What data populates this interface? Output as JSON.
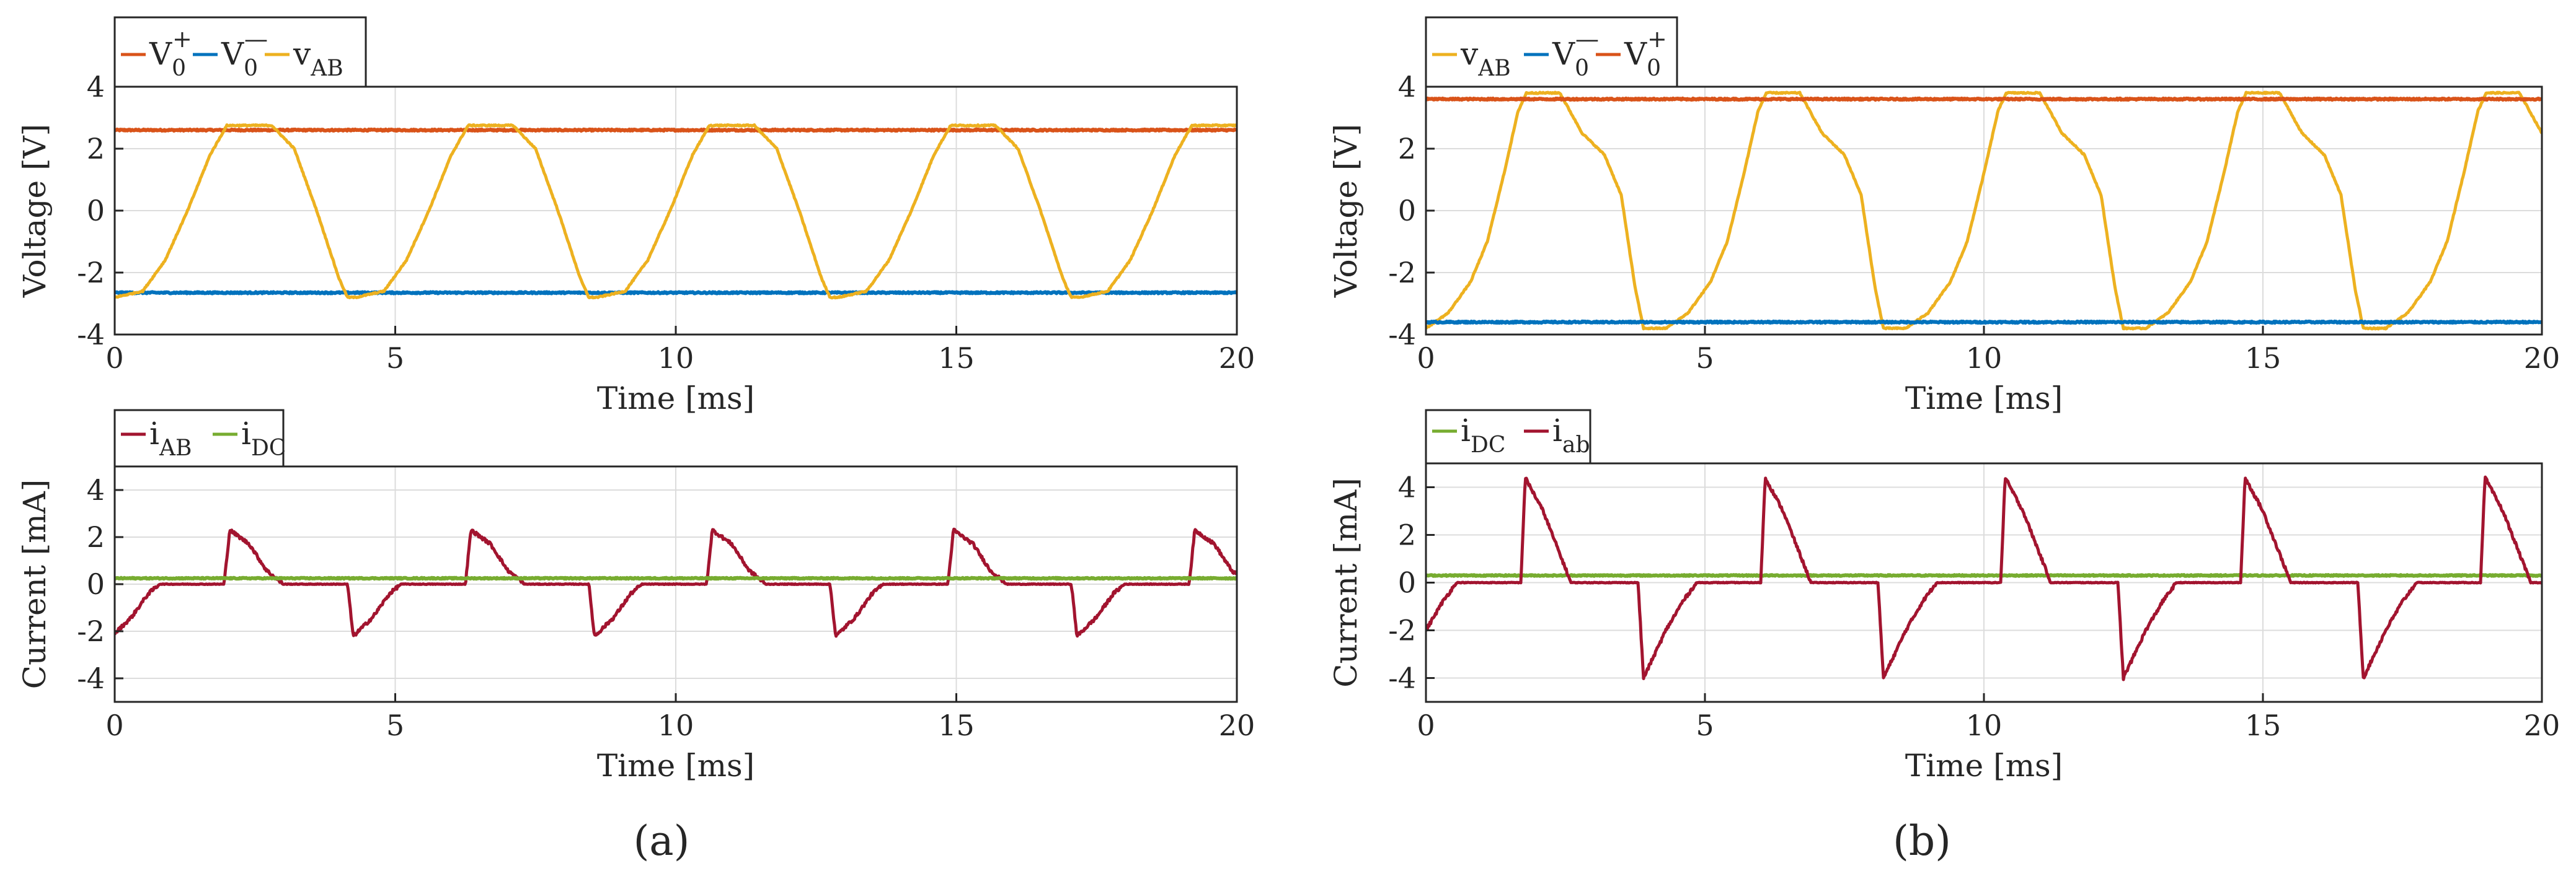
{
  "figure": {
    "panel_labels": [
      "(a)",
      "(b)"
    ]
  },
  "colors": {
    "v0p": "#D95319",
    "v0m": "#0072BD",
    "vab": "#EDB120",
    "iab": "#A2142F",
    "idc": "#77AC30",
    "axis": "#262626",
    "grid": "#dcdcdc"
  },
  "chart_data": [
    {
      "id": "a_voltage",
      "type": "line",
      "xlabel": "Time [ms]",
      "ylabel": "Voltage  [V]",
      "xlim": [
        0,
        20
      ],
      "ylim": [
        -4,
        4
      ],
      "xticks": [
        0,
        5,
        10,
        15,
        20
      ],
      "yticks": [
        -4,
        -2,
        0,
        2,
        4
      ],
      "legend": [
        {
          "key": "v0p",
          "base": "V",
          "sub": "0",
          "sup": "+"
        },
        {
          "key": "v0m",
          "base": "V",
          "sub": "0",
          "sup": "—"
        },
        {
          "key": "vab",
          "base": "v",
          "sub": "AB",
          "sup": ""
        }
      ],
      "series": [
        {
          "name": "V0+",
          "key": "v0p",
          "kind": "const",
          "value": 2.6
        },
        {
          "name": "V0-",
          "key": "v0m",
          "kind": "const",
          "value": -2.65
        },
        {
          "name": "vAB",
          "key": "vab",
          "kind": "pts",
          "period": 4.3,
          "repeat_from": 0,
          "repeat_to": 20,
          "pts": [
            [
              0,
              -2.8
            ],
            [
              0.5,
              -2.6
            ],
            [
              0.9,
              -1.6
            ],
            [
              1.3,
              0
            ],
            [
              1.7,
              1.8
            ],
            [
              2.0,
              2.75
            ],
            [
              2.8,
              2.75
            ],
            [
              3.2,
              2.0
            ],
            [
              3.6,
              0.0
            ],
            [
              4.0,
              -2.2
            ],
            [
              4.15,
              -2.8
            ],
            [
              4.3,
              -2.8
            ]
          ]
        }
      ]
    },
    {
      "id": "a_current",
      "type": "line",
      "xlabel": "Time [ms]",
      "ylabel": "Current [mA]",
      "xlim": [
        0,
        20
      ],
      "ylim": [
        -5,
        5
      ],
      "xticks": [
        0,
        5,
        10,
        15,
        20
      ],
      "yticks": [
        -4,
        -2,
        0,
        2,
        4
      ],
      "legend": [
        {
          "key": "iab",
          "base": "i",
          "sub": "AB",
          "sup": ""
        },
        {
          "key": "idc",
          "base": "i",
          "sub": "DC",
          "sup": ""
        }
      ],
      "series": [
        {
          "name": "iAB",
          "key": "iab",
          "kind": "pts",
          "period": 4.3,
          "repeat_from": 0,
          "repeat_to": 20,
          "pts": [
            [
              0,
              -2.1
            ],
            [
              0.3,
              -1.4
            ],
            [
              0.6,
              -0.4
            ],
            [
              0.8,
              0
            ],
            [
              1.95,
              0
            ],
            [
              2.05,
              2.3
            ],
            [
              2.4,
              1.7
            ],
            [
              2.7,
              0.6
            ],
            [
              3.0,
              0
            ],
            [
              4.15,
              0
            ],
            [
              4.25,
              -2.2
            ],
            [
              4.3,
              -2.1
            ]
          ]
        },
        {
          "name": "iDC",
          "key": "idc",
          "kind": "const",
          "value": 0.25
        }
      ]
    },
    {
      "id": "b_voltage",
      "type": "line",
      "xlabel": "Time [ms]",
      "ylabel": "Voltage  [V]",
      "xlim": [
        0,
        20
      ],
      "ylim": [
        -4,
        4
      ],
      "xticks": [
        0,
        5,
        10,
        15,
        20
      ],
      "yticks": [
        -4,
        -2,
        0,
        2,
        4
      ],
      "legend": [
        {
          "key": "vab",
          "base": "v",
          "sub": "AB",
          "sup": ""
        },
        {
          "key": "v0m",
          "base": "V",
          "sub": "0",
          "sup": "—"
        },
        {
          "key": "v0p",
          "base": "V",
          "sub": "0",
          "sup": "+"
        }
      ],
      "series": [
        {
          "name": "vAB",
          "key": "vab",
          "kind": "pts",
          "period": 4.3,
          "repeat_from": 0,
          "repeat_to": 20,
          "pts": [
            [
              0,
              -3.8
            ],
            [
              0.4,
              -3.3
            ],
            [
              0.8,
              -2.3
            ],
            [
              1.1,
              -1.0
            ],
            [
              1.4,
              1.2
            ],
            [
              1.65,
              3.2
            ],
            [
              1.8,
              3.8
            ],
            [
              2.4,
              3.8
            ],
            [
              2.8,
              2.5
            ],
            [
              3.2,
              1.8
            ],
            [
              3.5,
              0.5
            ],
            [
              3.75,
              -2.5
            ],
            [
              3.9,
              -3.8
            ],
            [
              4.3,
              -3.8
            ]
          ]
        },
        {
          "name": "V0-",
          "key": "v0m",
          "kind": "const",
          "value": -3.6
        },
        {
          "name": "V0+",
          "key": "v0p",
          "kind": "const",
          "value": 3.6
        }
      ]
    },
    {
      "id": "b_current",
      "type": "line",
      "xlabel": "Time [ms]",
      "ylabel": "Current [mA]",
      "xlim": [
        0,
        20
      ],
      "ylim": [
        -5,
        5
      ],
      "xticks": [
        0,
        5,
        10,
        15,
        20
      ],
      "yticks": [
        -4,
        -2,
        0,
        2,
        4
      ],
      "legend": [
        {
          "key": "idc",
          "base": "i",
          "sub": "DC",
          "sup": ""
        },
        {
          "key": "iab",
          "base": "i",
          "sub": "ab",
          "sup": ""
        }
      ],
      "series": [
        {
          "name": "iDC",
          "key": "idc",
          "kind": "const",
          "value": 0.3
        },
        {
          "name": "iab",
          "key": "iab",
          "kind": "pts",
          "period": 4.3,
          "repeat_from": 0,
          "repeat_to": 20,
          "pts": [
            [
              0,
              -2.0
            ],
            [
              0.3,
              -0.8
            ],
            [
              0.55,
              0
            ],
            [
              1.7,
              0
            ],
            [
              1.78,
              4.4
            ],
            [
              2.1,
              3.0
            ],
            [
              2.4,
              1.2
            ],
            [
              2.6,
              0
            ],
            [
              3.8,
              0
            ],
            [
              3.9,
              -4.0
            ],
            [
              4.3,
              -2.0
            ]
          ]
        }
      ]
    }
  ]
}
